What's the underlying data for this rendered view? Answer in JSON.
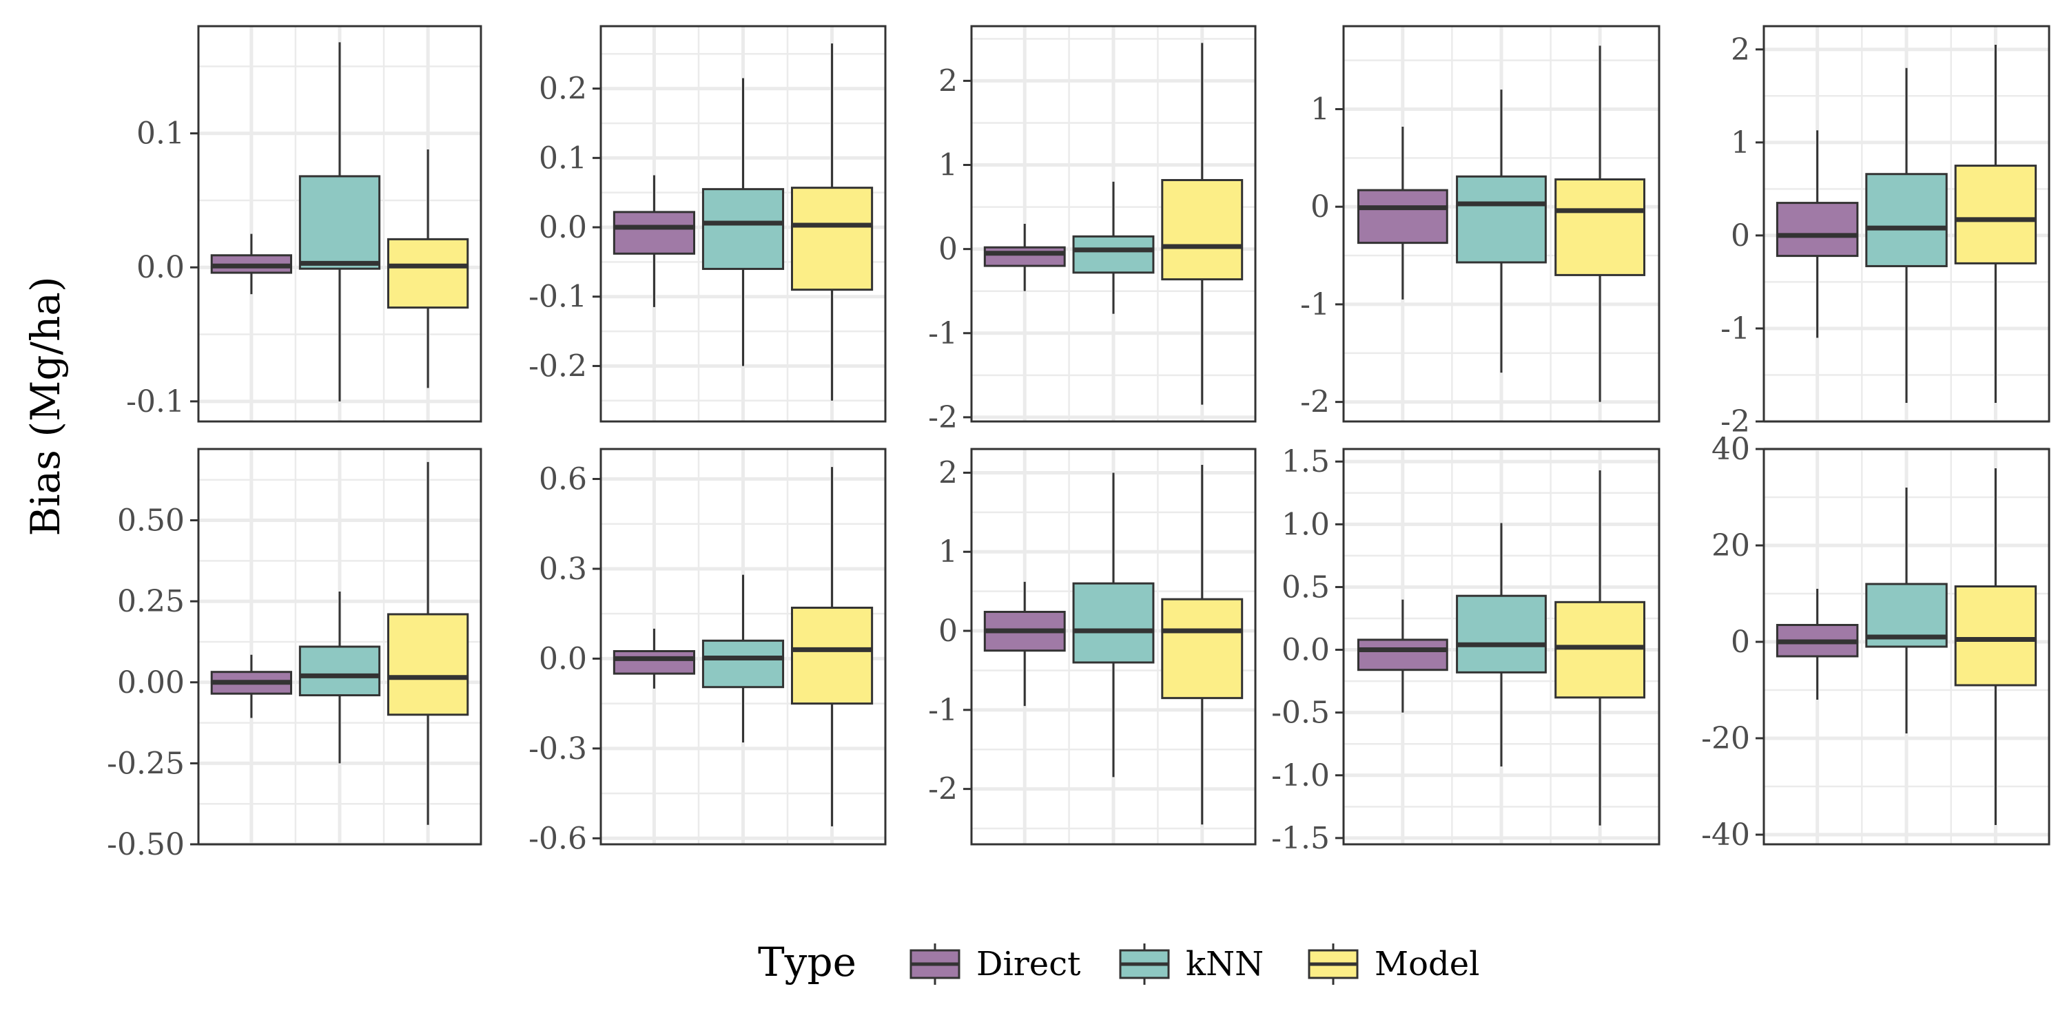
{
  "chart_data": {
    "type": "box",
    "ylabel": "Bias (Mg/ha)",
    "legend": {
      "title": "Type",
      "position": "bottom",
      "entries": [
        {
          "name": "Direct",
          "color": "#a07aa6"
        },
        {
          "name": "kNN",
          "color": "#8ec8c2"
        },
        {
          "name": "Model",
          "color": "#fcee87"
        }
      ]
    },
    "grid": true,
    "categories": [
      "Direct",
      "kNN",
      "Model"
    ],
    "panels": [
      {
        "ylim": [
          -0.115,
          0.18
        ],
        "yticks": [
          {
            "v": -0.1,
            "t": "-0.1"
          },
          {
            "v": 0.0,
            "t": "0.0"
          },
          {
            "v": 0.1,
            "t": "0.1"
          }
        ],
        "boxes": [
          {
            "min": -0.02,
            "q1": -0.004,
            "median": 0.001,
            "q3": 0.009,
            "max": 0.025
          },
          {
            "min": -0.1,
            "q1": -0.001,
            "median": 0.003,
            "q3": 0.068,
            "max": 0.168
          },
          {
            "min": -0.09,
            "q1": -0.03,
            "median": 0.001,
            "q3": 0.021,
            "max": 0.088
          }
        ]
      },
      {
        "ylim": [
          -0.28,
          0.29
        ],
        "yticks": [
          {
            "v": -0.2,
            "t": "-0.2"
          },
          {
            "v": -0.1,
            "t": "-0.1"
          },
          {
            "v": 0.0,
            "t": "0.0"
          },
          {
            "v": 0.1,
            "t": "0.1"
          },
          {
            "v": 0.2,
            "t": "0.2"
          }
        ],
        "boxes": [
          {
            "min": -0.115,
            "q1": -0.038,
            "median": 0.0,
            "q3": 0.022,
            "max": 0.075
          },
          {
            "min": -0.2,
            "q1": -0.06,
            "median": 0.006,
            "q3": 0.055,
            "max": 0.215
          },
          {
            "min": -0.25,
            "q1": -0.09,
            "median": 0.003,
            "q3": 0.057,
            "max": 0.265
          }
        ]
      },
      {
        "ylim": [
          -2.05,
          2.65
        ],
        "yticks": [
          {
            "v": -2,
            "t": "-2"
          },
          {
            "v": -1,
            "t": "-1"
          },
          {
            "v": 0,
            "t": "0"
          },
          {
            "v": 1,
            "t": "1"
          },
          {
            "v": 2,
            "t": "2"
          }
        ],
        "boxes": [
          {
            "min": -0.5,
            "q1": -0.2,
            "median": -0.05,
            "q3": 0.02,
            "max": 0.3
          },
          {
            "min": -0.77,
            "q1": -0.28,
            "median": -0.01,
            "q3": 0.15,
            "max": 0.8
          },
          {
            "min": -1.85,
            "q1": -0.36,
            "median": 0.03,
            "q3": 0.82,
            "max": 2.45
          }
        ]
      },
      {
        "ylim": [
          -2.2,
          1.85
        ],
        "yticks": [
          {
            "v": -2,
            "t": "-2"
          },
          {
            "v": -1,
            "t": "-1"
          },
          {
            "v": 0,
            "t": "0"
          },
          {
            "v": 1,
            "t": "1"
          }
        ],
        "boxes": [
          {
            "min": -0.95,
            "q1": -0.37,
            "median": -0.01,
            "q3": 0.17,
            "max": 0.82
          },
          {
            "min": -1.7,
            "q1": -0.57,
            "median": 0.03,
            "q3": 0.31,
            "max": 1.2
          },
          {
            "min": -2.0,
            "q1": -0.7,
            "median": -0.04,
            "q3": 0.28,
            "max": 1.65
          }
        ]
      },
      {
        "ylim": [
          -2.0,
          2.25
        ],
        "yticks": [
          {
            "v": -2,
            "t": "-2"
          },
          {
            "v": -1,
            "t": "-1"
          },
          {
            "v": 0,
            "t": "0"
          },
          {
            "v": 1,
            "t": "1"
          },
          {
            "v": 2,
            "t": "2"
          }
        ],
        "boxes": [
          {
            "min": -1.1,
            "q1": -0.22,
            "median": 0.0,
            "q3": 0.35,
            "max": 1.13
          },
          {
            "min": -1.8,
            "q1": -0.33,
            "median": 0.08,
            "q3": 0.66,
            "max": 1.8
          },
          {
            "min": -1.8,
            "q1": -0.3,
            "median": 0.17,
            "q3": 0.75,
            "max": 2.05
          }
        ]
      },
      {
        "ylim": [
          -0.5,
          0.72
        ],
        "yticks": [
          {
            "v": -0.5,
            "t": "-0.50"
          },
          {
            "v": -0.25,
            "t": "-0.25"
          },
          {
            "v": 0.0,
            "t": "0.00"
          },
          {
            "v": 0.25,
            "t": "0.25"
          },
          {
            "v": 0.5,
            "t": "0.50"
          }
        ],
        "boxes": [
          {
            "min": -0.11,
            "q1": -0.035,
            "median": 0.0,
            "q3": 0.032,
            "max": 0.085
          },
          {
            "min": -0.25,
            "q1": -0.04,
            "median": 0.02,
            "q3": 0.11,
            "max": 0.28
          },
          {
            "min": -0.44,
            "q1": -0.1,
            "median": 0.015,
            "q3": 0.21,
            "max": 0.68
          }
        ]
      },
      {
        "ylim": [
          -0.62,
          0.7
        ],
        "yticks": [
          {
            "v": -0.6,
            "t": "-0.6"
          },
          {
            "v": -0.3,
            "t": "-0.3"
          },
          {
            "v": 0.0,
            "t": "0.0"
          },
          {
            "v": 0.3,
            "t": "0.3"
          },
          {
            "v": 0.6,
            "t": "0.6"
          }
        ],
        "boxes": [
          {
            "min": -0.1,
            "q1": -0.05,
            "median": 0.0,
            "q3": 0.025,
            "max": 0.1
          },
          {
            "min": -0.28,
            "q1": -0.095,
            "median": 0.002,
            "q3": 0.06,
            "max": 0.28
          },
          {
            "min": -0.56,
            "q1": -0.15,
            "median": 0.03,
            "q3": 0.17,
            "max": 0.64
          }
        ]
      },
      {
        "ylim": [
          -2.7,
          2.3
        ],
        "yticks": [
          {
            "v": -2,
            "t": "-2"
          },
          {
            "v": -1,
            "t": "-1"
          },
          {
            "v": 0,
            "t": "0"
          },
          {
            "v": 1,
            "t": "1"
          },
          {
            "v": 2,
            "t": "2"
          }
        ],
        "boxes": [
          {
            "min": -0.95,
            "q1": -0.25,
            "median": 0.0,
            "q3": 0.24,
            "max": 0.62
          },
          {
            "min": -1.85,
            "q1": -0.4,
            "median": 0.0,
            "q3": 0.6,
            "max": 2.0
          },
          {
            "min": -2.45,
            "q1": -0.85,
            "median": 0.0,
            "q3": 0.4,
            "max": 2.1
          }
        ]
      },
      {
        "ylim": [
          -1.55,
          1.6
        ],
        "yticks": [
          {
            "v": -1.5,
            "t": "-1.5"
          },
          {
            "v": -1.0,
            "t": "-1.0"
          },
          {
            "v": -0.5,
            "t": "-0.5"
          },
          {
            "v": 0.0,
            "t": "0.0"
          },
          {
            "v": 0.5,
            "t": "0.5"
          },
          {
            "v": 1.0,
            "t": "1.0"
          },
          {
            "v": 1.5,
            "t": "1.5"
          }
        ],
        "boxes": [
          {
            "min": -0.5,
            "q1": -0.16,
            "median": 0.0,
            "q3": 0.08,
            "max": 0.4
          },
          {
            "min": -0.93,
            "q1": -0.18,
            "median": 0.04,
            "q3": 0.43,
            "max": 1.01
          },
          {
            "min": -1.4,
            "q1": -0.38,
            "median": 0.02,
            "q3": 0.38,
            "max": 1.43
          }
        ]
      },
      {
        "ylim": [
          -42,
          40
        ],
        "yticks": [
          {
            "v": -40,
            "t": "-40"
          },
          {
            "v": -20,
            "t": "-20"
          },
          {
            "v": 0,
            "t": "0"
          },
          {
            "v": 20,
            "t": "20"
          },
          {
            "v": 40,
            "t": "40"
          }
        ],
        "boxes": [
          {
            "min": -12,
            "q1": -3,
            "median": 0,
            "q3": 3.5,
            "max": 11
          },
          {
            "min": -19,
            "q1": -1,
            "median": 1,
            "q3": 12,
            "max": 32
          },
          {
            "min": -38,
            "q1": -9,
            "median": 0.5,
            "q3": 11.5,
            "max": 36
          }
        ]
      }
    ]
  }
}
